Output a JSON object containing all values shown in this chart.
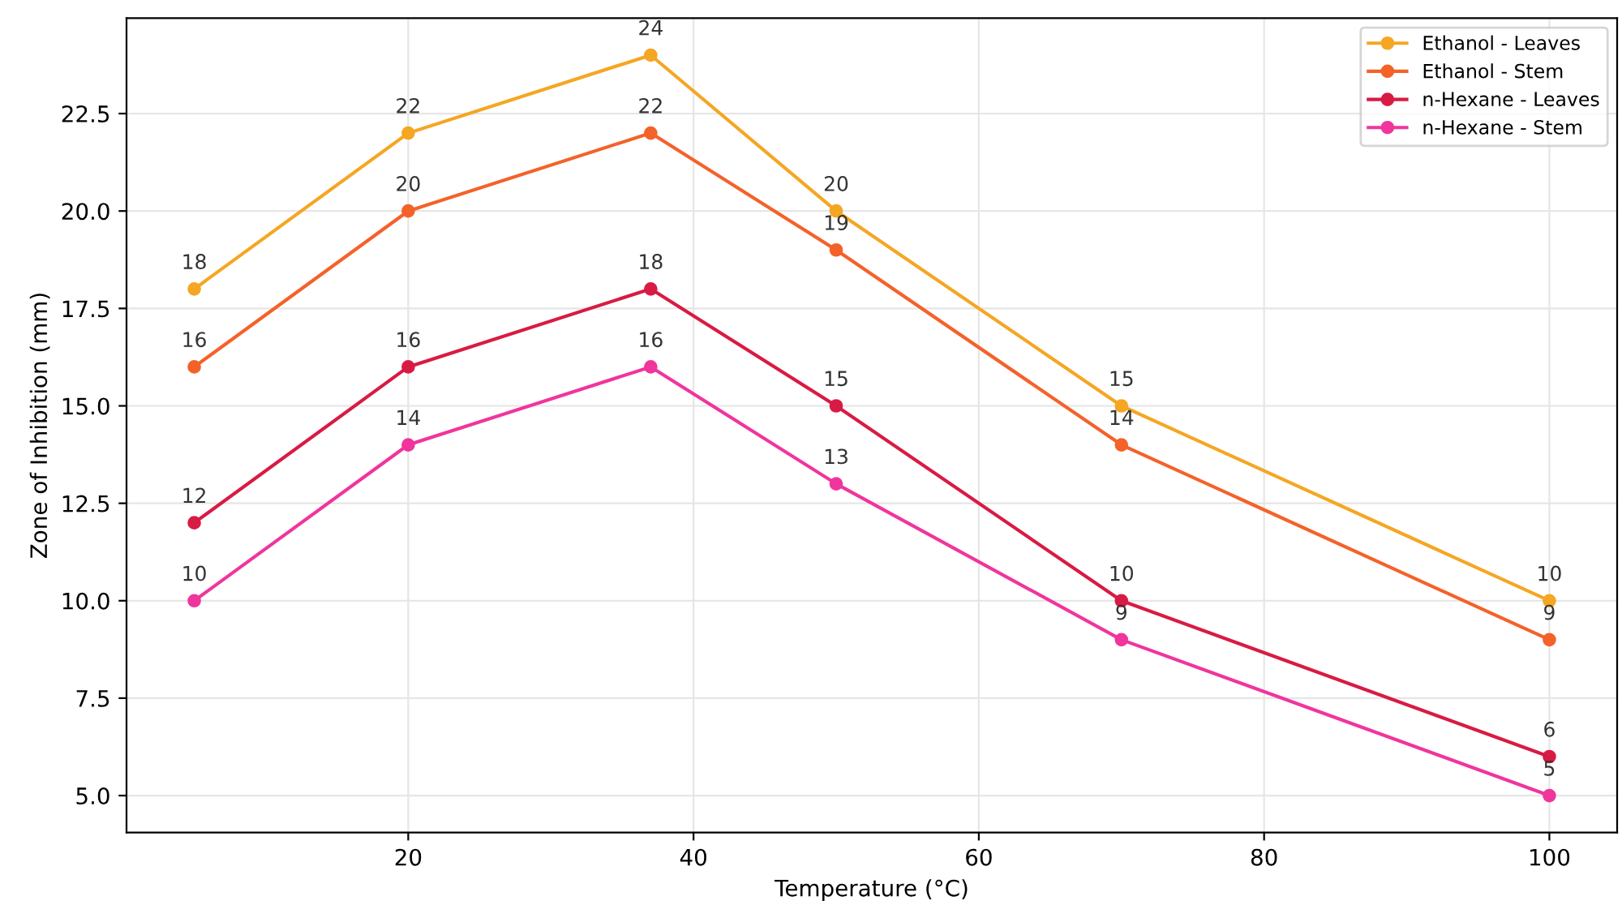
{
  "chart_data": {
    "type": "line",
    "xlabel": "Temperature (°C)",
    "ylabel": "Zone of Inhibition (mm)",
    "x": [
      5,
      20,
      37,
      50,
      70,
      100
    ],
    "series": [
      {
        "name": "Ethanol - Leaves",
        "color": "#f5a623",
        "values": [
          18,
          22,
          24,
          20,
          15,
          10
        ]
      },
      {
        "name": "Ethanol - Stem",
        "color": "#f4622a",
        "values": [
          16,
          20,
          22,
          19,
          14,
          9
        ]
      },
      {
        "name": "n-Hexane - Leaves",
        "color": "#d81b44",
        "values": [
          12,
          16,
          18,
          15,
          10,
          6
        ]
      },
      {
        "name": "n-Hexane - Stem",
        "color": "#f0359d",
        "values": [
          10,
          14,
          16,
          13,
          9,
          5
        ]
      }
    ],
    "xlim": [
      0.25,
      104.75
    ],
    "ylim": [
      4.05,
      24.95
    ],
    "xticks": [
      20,
      40,
      60,
      80,
      100
    ],
    "yticks": [
      {
        "value": 5,
        "label": "5.0"
      },
      {
        "value": 7.5,
        "label": "7.5"
      },
      {
        "value": 10,
        "label": "10.0"
      },
      {
        "value": 12.5,
        "label": "12.5"
      },
      {
        "value": 15,
        "label": "15.0"
      },
      {
        "value": 17.5,
        "label": "17.5"
      },
      {
        "value": 20,
        "label": "20.0"
      },
      {
        "value": 22.5,
        "label": "22.5"
      }
    ],
    "grid": true,
    "legend": "top right",
    "marker": "circle",
    "line_style": "solid",
    "data_labels": true
  }
}
